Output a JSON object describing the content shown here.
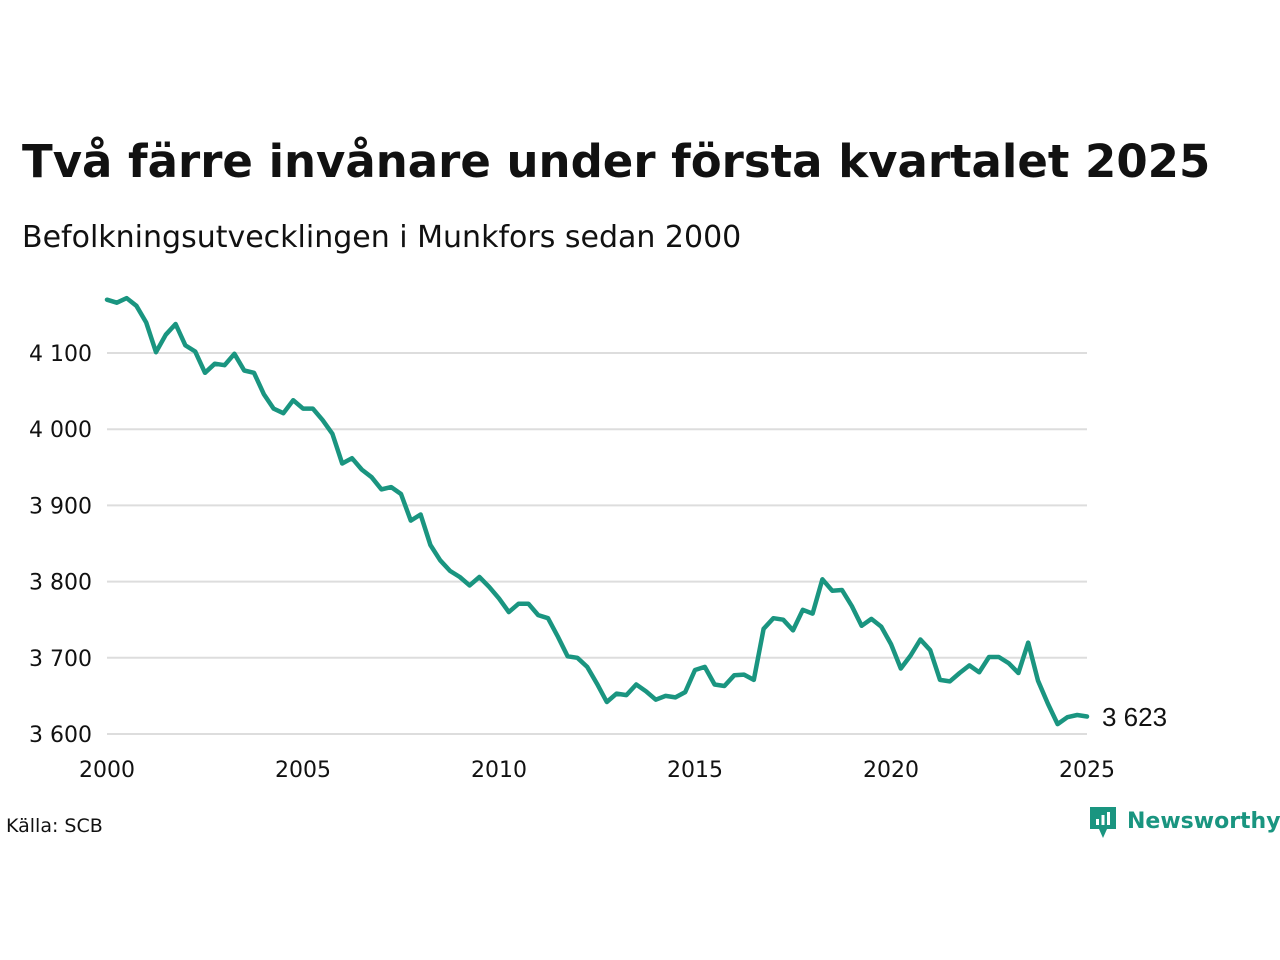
{
  "chart_data": {
    "type": "line",
    "title": "Två färre invånare under första kvartalet 2025",
    "subtitle": "Befolkningsutvecklingen i Munkfors sedan 2000",
    "source": "Källa: SCB",
    "logo_text": "Newsworthy",
    "line_color": "#1a9580",
    "grid": true,
    "ylim": [
      3590,
      4180
    ],
    "xlim": [
      2000,
      2025
    ],
    "y_ticks": [
      3600,
      3700,
      3800,
      3900,
      4000,
      4100
    ],
    "y_tick_labels": [
      "3 600",
      "3 700",
      "3 800",
      "3 900",
      "4 000",
      "4 100"
    ],
    "x_ticks": [
      2000,
      2005,
      2010,
      2015,
      2020,
      2025
    ],
    "x_tick_labels": [
      "2000",
      "2005",
      "2010",
      "2015",
      "2020",
      "2025"
    ],
    "end_label": "3 623",
    "x": [
      2000.0,
      2000.25,
      2000.5,
      2000.75,
      2001.0,
      2001.25,
      2001.5,
      2001.75,
      2002.0,
      2002.25,
      2002.5,
      2002.75,
      2003.0,
      2003.25,
      2003.5,
      2003.75,
      2004.0,
      2004.25,
      2004.5,
      2004.75,
      2005.0,
      2005.25,
      2005.5,
      2005.75,
      2006.0,
      2006.25,
      2006.5,
      2006.75,
      2007.0,
      2007.25,
      2007.5,
      2007.75,
      2008.0,
      2008.25,
      2008.5,
      2008.75,
      2009.0,
      2009.25,
      2009.5,
      2009.75,
      2010.0,
      2010.25,
      2010.5,
      2010.75,
      2011.0,
      2011.25,
      2011.5,
      2011.75,
      2012.0,
      2012.25,
      2012.5,
      2012.75,
      2013.0,
      2013.25,
      2013.5,
      2013.75,
      2014.0,
      2014.25,
      2014.5,
      2014.75,
      2015.0,
      2015.25,
      2015.5,
      2015.75,
      2016.0,
      2016.25,
      2016.5,
      2016.75,
      2017.0,
      2017.25,
      2017.5,
      2017.75,
      2018.0,
      2018.25,
      2018.5,
      2018.75,
      2019.0,
      2019.25,
      2019.5,
      2019.75,
      2020.0,
      2020.25,
      2020.5,
      2020.75,
      2021.0,
      2021.25,
      2021.5,
      2021.75,
      2022.0,
      2022.25,
      2022.5,
      2022.75,
      2023.0,
      2023.25,
      2023.5,
      2023.75,
      2024.0,
      2024.25,
      2024.5,
      2024.75,
      2025.0
    ],
    "series": [
      {
        "values": [
          4170,
          4166,
          4172,
          4162,
          4140,
          4101,
          4124,
          4138,
          4110,
          4102,
          4074,
          4086,
          4084,
          4099,
          4077,
          4074,
          4046,
          4027,
          4021,
          4038,
          4027,
          4027,
          4012,
          3994,
          3955,
          3962,
          3947,
          3937,
          3921,
          3924,
          3915,
          3880,
          3888,
          3848,
          3828,
          3814,
          3806,
          3795,
          3806,
          3793,
          3778,
          3760,
          3771,
          3771,
          3756,
          3752,
          3728,
          3702,
          3700,
          3688,
          3666,
          3642,
          3653,
          3651,
          3665,
          3656,
          3645,
          3650,
          3648,
          3655,
          3684,
          3688,
          3665,
          3663,
          3677,
          3678,
          3671,
          3738,
          3752,
          3750,
          3736,
          3763,
          3758,
          3803,
          3788,
          3789,
          3768,
          3742,
          3751,
          3741,
          3718,
          3686,
          3703,
          3724,
          3710,
          3671,
          3669,
          3680,
          3690,
          3681,
          3701,
          3701,
          3693,
          3680,
          3720,
          3670,
          3640,
          3613,
          3622,
          3625,
          3623
        ]
      }
    ]
  }
}
